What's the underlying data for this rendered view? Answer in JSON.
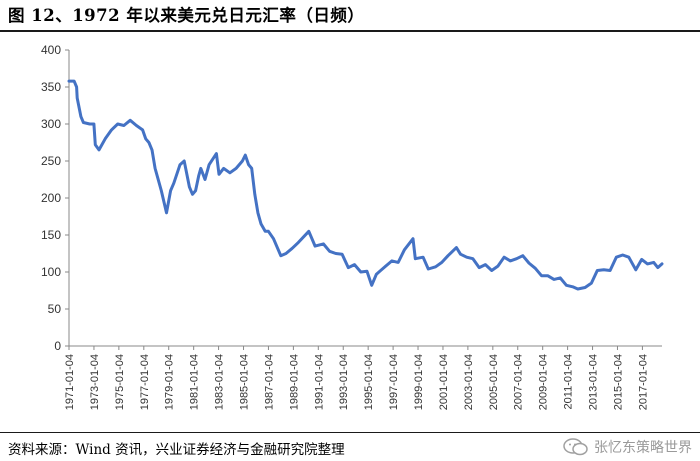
{
  "title": "图 12、1972 年以来美元兑日元汇率（日频）",
  "source": "资料来源：Wind 资讯，兴业证券经济与金融研究院整理",
  "watermark": "张忆东策略世界",
  "colors": {
    "line": "#4472C4",
    "axis": "#888888"
  },
  "chart_data": {
    "type": "line",
    "title": "",
    "xlabel": "",
    "ylabel": "",
    "ylim": [
      0,
      400
    ],
    "y_ticks": [
      0,
      50,
      100,
      150,
      200,
      250,
      300,
      350,
      400
    ],
    "x_ticks": [
      "1971-01-04",
      "1973-01-04",
      "1975-01-04",
      "1977-01-04",
      "1979-01-04",
      "1981-01-04",
      "1983-01-04",
      "1985-01-04",
      "1987-01-04",
      "1989-01-04",
      "1991-01-04",
      "1993-01-04",
      "1995-01-04",
      "1997-01-04",
      "1999-01-04",
      "2001-01-04",
      "2003-01-04",
      "2005-01-04",
      "2007-01-04",
      "2009-01-04",
      "2011-01-04",
      "2013-01-04",
      "2015-01-04",
      "2017-01-04"
    ],
    "grid": false,
    "series": [
      {
        "x": [
          "1971-01-04",
          "1971-06-01",
          "1971-08-15",
          "1971-09-01",
          "1971-12-20",
          "1972-03-01",
          "1972-09-01",
          "1973-01-04",
          "1973-02-14",
          "1973-06-01",
          "1973-12-01",
          "1974-06-01",
          "1974-12-01",
          "1975-06-01",
          "1975-12-01",
          "1976-06-01",
          "1976-12-01",
          "1977-03-01",
          "1977-06-01",
          "1977-09-01",
          "1977-12-01",
          "1978-03-01",
          "1978-06-01",
          "1978-10-31",
          "1979-03-01",
          "1979-06-01",
          "1979-12-01",
          "1980-04-01",
          "1980-09-01",
          "1980-12-01",
          "1981-03-01",
          "1981-06-01",
          "1981-08-01",
          "1981-12-01",
          "1982-04-01",
          "1982-11-01",
          "1983-01-15",
          "1983-06-01",
          "1983-12-01",
          "1984-06-01",
          "1984-12-01",
          "1985-02-25",
          "1985-06-01",
          "1985-09-01",
          "1985-12-01",
          "1986-03-01",
          "1986-06-01",
          "1986-10-01",
          "1987-01-04",
          "1987-06-01",
          "1987-12-31",
          "1988-06-01",
          "1988-12-01",
          "1989-06-01",
          "1990-04-01",
          "1990-10-01",
          "1991-06-01",
          "1991-12-01",
          "1992-06-01",
          "1992-12-01",
          "1993-06-01",
          "1993-12-01",
          "1994-06-01",
          "1994-12-01",
          "1995-04-19",
          "1995-09-01",
          "1996-06-01",
          "1996-12-01",
          "1997-06-01",
          "1997-12-01",
          "1998-08-11",
          "1998-10-15",
          "1999-06-01",
          "1999-11-01",
          "2000-06-01",
          "2000-12-01",
          "2001-06-01",
          "2002-02-01",
          "2002-06-01",
          "2002-12-01",
          "2003-06-01",
          "2003-12-01",
          "2004-06-01",
          "2004-12-01",
          "2005-06-01",
          "2005-12-01",
          "2006-06-01",
          "2006-12-01",
          "2007-06-01",
          "2007-12-01",
          "2008-06-01",
          "2008-12-01",
          "2009-06-01",
          "2009-12-01",
          "2010-06-01",
          "2010-12-01",
          "2011-06-01",
          "2011-10-31",
          "2012-06-01",
          "2012-12-01",
          "2013-05-22",
          "2013-12-01",
          "2014-06-01",
          "2014-12-01",
          "2015-06-05",
          "2015-12-01",
          "2016-06-24",
          "2016-12-15",
          "2017-06-01",
          "2017-12-01",
          "2018-04-01",
          "2018-08-01"
        ],
        "values": [
          358,
          358,
          350,
          335,
          310,
          302,
          300,
          300,
          272,
          265,
          280,
          292,
          300,
          298,
          305,
          298,
          292,
          280,
          275,
          265,
          240,
          225,
          210,
          180,
          210,
          220,
          245,
          250,
          215,
          205,
          210,
          230,
          240,
          225,
          245,
          260,
          232,
          240,
          234,
          240,
          250,
          258,
          245,
          240,
          205,
          180,
          165,
          155,
          155,
          145,
          122,
          125,
          132,
          140,
          155,
          135,
          138,
          128,
          125,
          124,
          106,
          110,
          100,
          101,
          82,
          97,
          108,
          115,
          113,
          130,
          145,
          118,
          120,
          104,
          107,
          113,
          122,
          133,
          124,
          120,
          118,
          106,
          110,
          102,
          108,
          120,
          115,
          118,
          122,
          112,
          105,
          95,
          95,
          90,
          92,
          82,
          80,
          77,
          79,
          85,
          102,
          103,
          102,
          120,
          123,
          120,
          103,
          117,
          111,
          113,
          106,
          111
        ]
      }
    ]
  }
}
